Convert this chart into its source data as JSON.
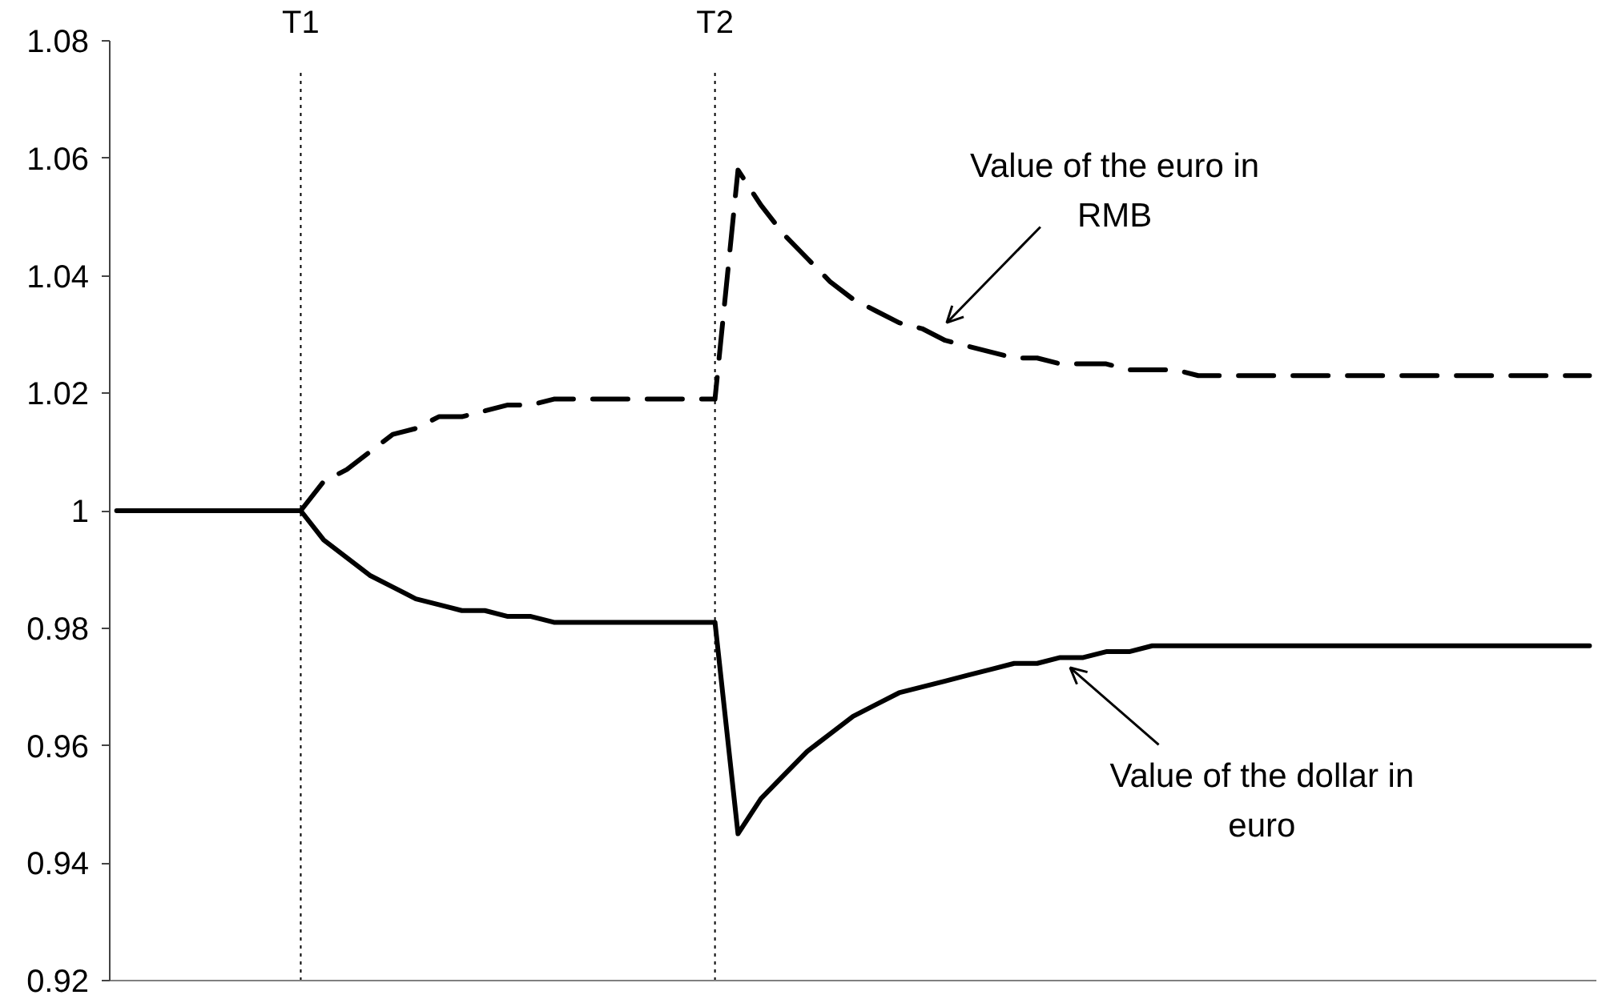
{
  "chart_data": {
    "type": "line",
    "categories": [
      null,
      null,
      null,
      null,
      null,
      null,
      null,
      null,
      "T1",
      null,
      null,
      null,
      null,
      null,
      null,
      null,
      null,
      null,
      null,
      null,
      null,
      null,
      null,
      null,
      null,
      null,
      "T2",
      null,
      null,
      null,
      null,
      null,
      null,
      null,
      null,
      null,
      null,
      null,
      null,
      null,
      null,
      null,
      null,
      null,
      null,
      null,
      null,
      null,
      null,
      null,
      null,
      null,
      null,
      null,
      null,
      null,
      null,
      null,
      null,
      null,
      null,
      null,
      null,
      null,
      null
    ],
    "series": [
      {
        "color": "#000000",
        "line_style": "dashed",
        "values": [
          null,
          null,
          null,
          null,
          null,
          null,
          null,
          null,
          1,
          1.005,
          1.007,
          1.01,
          1.013,
          1.014,
          1.016,
          1.016,
          1.017,
          1.018,
          1.018,
          1.019,
          1.019,
          1.019,
          1.019,
          1.019,
          1.019,
          1.019,
          1.019,
          1.058,
          1.052,
          1.047,
          1.043,
          1.039,
          1.036,
          1.034,
          1.032,
          1.031,
          1.029,
          1.028,
          1.027,
          1.026,
          1.026,
          1.025,
          1.025,
          1.025,
          1.024,
          1.024,
          1.024,
          1.023,
          1.023,
          1.023,
          1.023,
          1.023,
          1.023,
          1.023,
          1.023,
          1.023,
          1.023,
          1.023,
          1.023,
          1.023,
          1.023,
          1.023,
          1.023,
          1.023,
          1.023
        ]
      },
      {
        "color": "#000000",
        "line_style": "solid",
        "values": [
          1,
          1,
          1,
          1,
          1,
          1,
          1,
          1,
          1,
          0.995,
          0.992,
          0.989,
          0.987,
          0.985,
          0.984,
          0.983,
          0.983,
          0.982,
          0.982,
          0.981,
          0.981,
          0.981,
          0.981,
          0.981,
          0.981,
          0.981,
          0.981,
          0.945,
          0.951,
          0.955,
          0.959,
          0.962,
          0.965,
          0.967,
          0.969,
          0.97,
          0.971,
          0.972,
          0.973,
          0.974,
          0.974,
          0.975,
          0.975,
          0.976,
          0.976,
          0.977,
          0.977,
          0.977,
          0.977,
          0.977,
          0.977,
          0.977,
          0.977,
          0.977,
          0.977,
          0.977,
          0.977,
          0.977,
          0.977,
          0.977,
          0.977,
          0.977,
          0.977,
          0.977,
          0.977
        ]
      }
    ],
    "ylim": [
      0.92,
      1.08
    ],
    "yticks": [
      0.92,
      0.94,
      0.96,
      0.98,
      1,
      1.02,
      1.04,
      1.06,
      1.08
    ],
    "ref_lines": [
      {
        "axis": "x",
        "value": "T1",
        "color": "#000000",
        "line_style": "dotted"
      },
      {
        "axis": "x",
        "value": "T2",
        "color": "#000000",
        "line_style": "dotted"
      }
    ],
    "annotations": [
      "Value of the euro in RMB",
      "Value of the dollar in euro"
    ]
  }
}
